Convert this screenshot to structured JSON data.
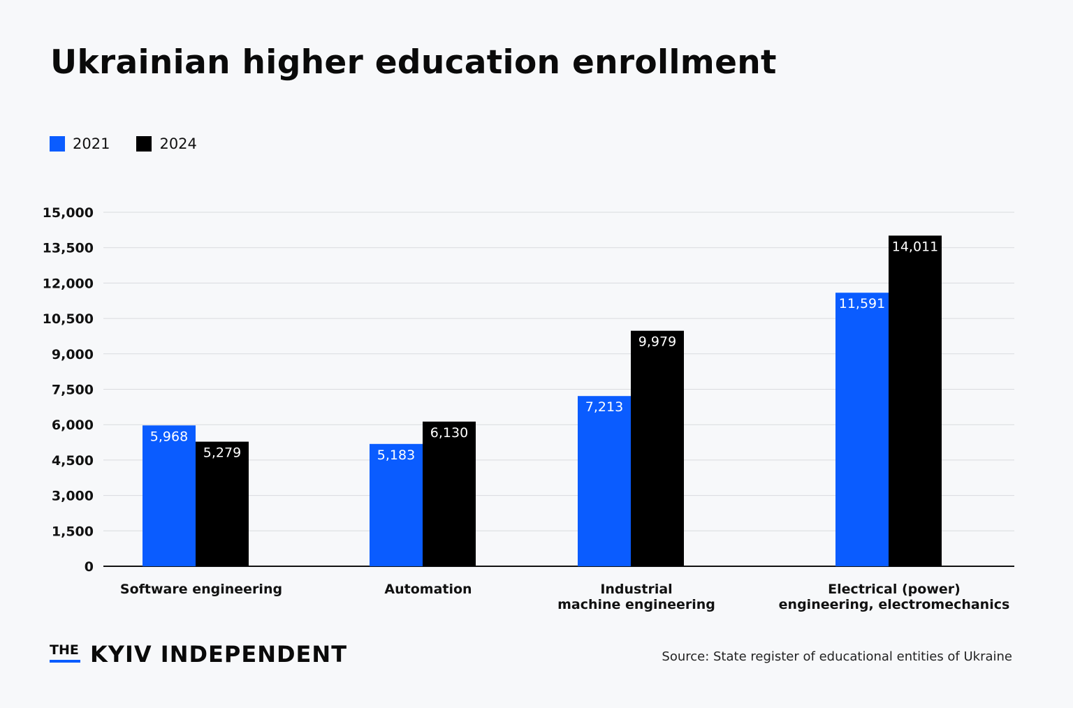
{
  "title": "Ukrainian higher education enrollment",
  "legend": [
    {
      "label": "2021",
      "color": "#0a5cff"
    },
    {
      "label": "2024",
      "color": "#000000"
    }
  ],
  "chart_data": {
    "type": "bar",
    "title": "Ukrainian higher education enrollment",
    "categories": [
      [
        "Software engineering"
      ],
      [
        "Automation"
      ],
      [
        "Industrial",
        "machine engineering"
      ],
      [
        "Electrical (power)",
        "engineering, electromechanics"
      ]
    ],
    "series": [
      {
        "name": "2021",
        "color": "#0a5cff",
        "values": [
          5968,
          5183,
          7213,
          11591
        ],
        "labels": [
          "5,968",
          "5,183",
          "7,213",
          "11,591"
        ]
      },
      {
        "name": "2024",
        "color": "#000000",
        "values": [
          5279,
          6130,
          9979,
          14011
        ],
        "labels": [
          "5,279",
          "6,130",
          "9,979",
          "14,011"
        ]
      }
    ],
    "ylim": [
      0,
      15000
    ],
    "yticks": [
      0,
      1500,
      3000,
      4500,
      6000,
      7500,
      9000,
      10500,
      12000,
      13500,
      15000
    ],
    "ytick_labels": [
      "0",
      "1,500",
      "3,000",
      "4,500",
      "6,000",
      "7,500",
      "9,000",
      "10,500",
      "12,000",
      "13,500",
      "15,000"
    ],
    "grid": true,
    "legend_position": "top-left",
    "xlabel": "",
    "ylabel": ""
  },
  "branding": {
    "the": "THE",
    "name": "KYIV INDEPENDENT"
  },
  "source": "Source:  State register of educational entities of Ukraine"
}
